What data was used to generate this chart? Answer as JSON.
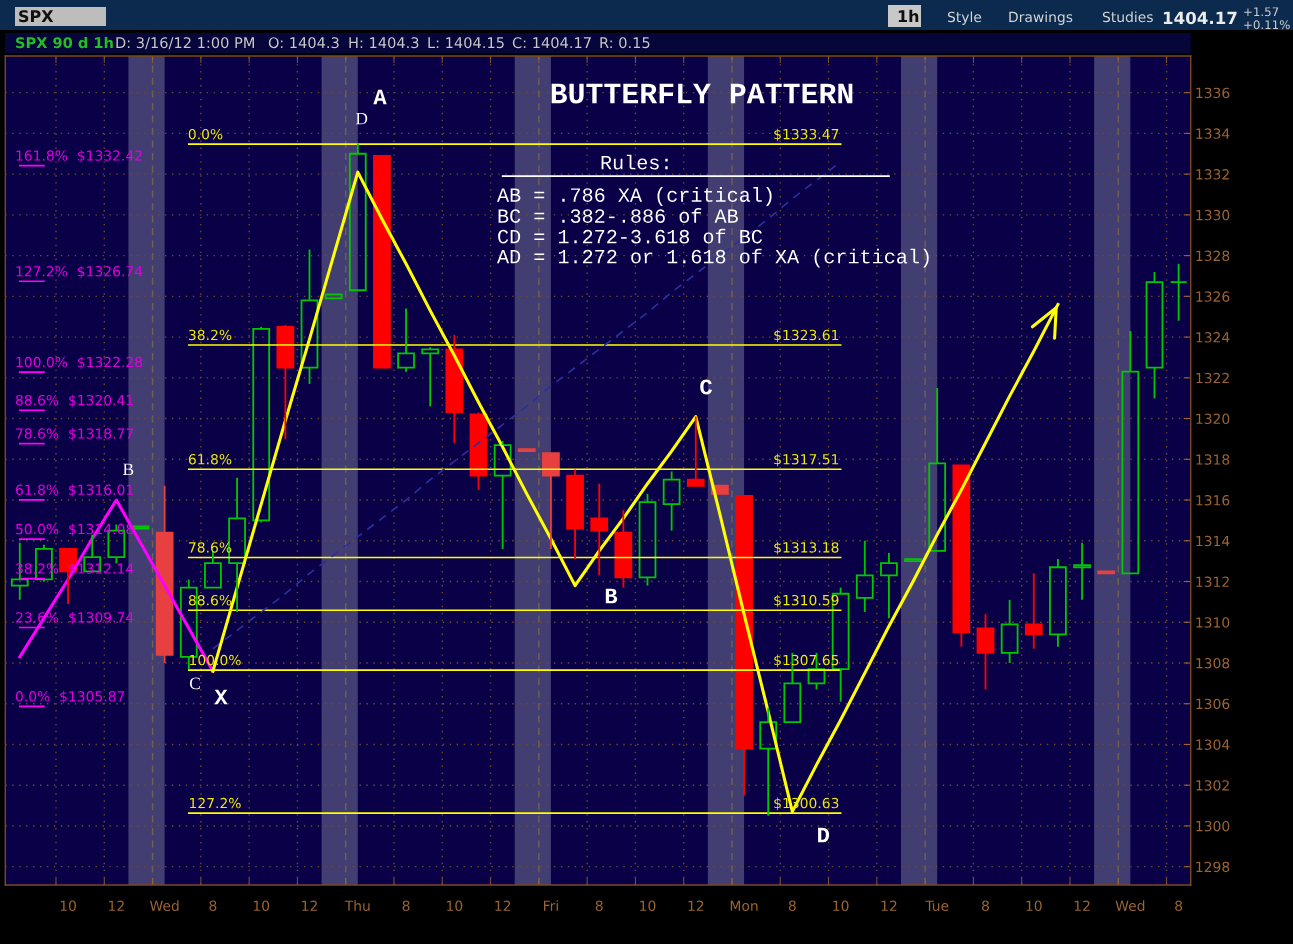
{
  "chart_data": {
    "type": "candlestick",
    "title": "BUTTERFLY PATTERN",
    "categories": [
      null,
      null,
      "10",
      null,
      "12",
      null,
      "Wed",
      null,
      "8",
      null,
      "10",
      null,
      "12",
      null,
      "Thu",
      null,
      "8",
      null,
      "10",
      null,
      "12",
      null,
      "Fri",
      null,
      "8",
      null,
      "10",
      null,
      "12",
      null,
      "Mon",
      null,
      "8",
      null,
      "10",
      null,
      "12",
      null,
      "Tue",
      null,
      "8",
      null,
      "10",
      null,
      "12",
      null,
      "Wed",
      null,
      "8"
    ],
    "ohlc": [
      [
        1311.8,
        1313.9,
        1311.1,
        1312.1
      ],
      [
        1312.1,
        1313.8,
        1312.0,
        1313.6
      ],
      [
        1313.6,
        1313.6,
        1310.9,
        1312.5
      ],
      [
        1312.5,
        1314.3,
        1312.5,
        1313.2
      ],
      [
        1313.2,
        1314.8,
        1312.9,
        1314.5
      ],
      [
        1314.6,
        1314.7,
        1314.6,
        1314.7
      ],
      [
        1314.4,
        1316.7,
        1308.0,
        1308.4
      ],
      [
        1308.3,
        1312.1,
        1307.7,
        1311.7
      ],
      [
        1311.7,
        1313.5,
        1311.7,
        1312.9
      ],
      [
        1312.9,
        1317.1,
        1310.5,
        1315.1
      ],
      [
        1315.0,
        1324.5,
        1314.9,
        1324.4
      ],
      [
        1324.5,
        1324.6,
        1319.0,
        1322.5
      ],
      [
        1322.5,
        1328.3,
        1321.7,
        1325.8
      ],
      [
        1325.9,
        1326.1,
        1325.9,
        1326.1
      ],
      [
        1326.3,
        1333.5,
        1326.3,
        1333.0
      ],
      [
        1332.9,
        1332.9,
        1322.5,
        1322.5
      ],
      [
        1322.5,
        1325.4,
        1322.3,
        1323.2
      ],
      [
        1323.2,
        1323.5,
        1320.6,
        1323.4
      ],
      [
        1323.4,
        1324.1,
        1318.8,
        1320.3
      ],
      [
        1320.2,
        1320.3,
        1316.5,
        1317.2
      ],
      [
        1317.2,
        1318.9,
        1313.6,
        1318.7
      ],
      [
        1318.5,
        1318.5,
        1318.4,
        1318.4
      ],
      [
        1318.3,
        1318.3,
        1313.6,
        1317.2
      ],
      [
        1317.2,
        1317.5,
        1313.1,
        1314.6
      ],
      [
        1315.1,
        1316.8,
        1312.3,
        1314.5
      ],
      [
        1314.4,
        1315.5,
        1311.7,
        1312.2
      ],
      [
        1312.2,
        1316.3,
        1311.8,
        1315.9
      ],
      [
        1315.8,
        1317.4,
        1314.5,
        1317.0
      ],
      [
        1317.0,
        1320.1,
        1316.7,
        1316.7
      ],
      [
        1316.7,
        1316.7,
        1316.3,
        1316.3
      ],
      [
        1316.2,
        1316.2,
        1301.5,
        1303.8
      ],
      [
        1303.8,
        1305.8,
        1300.5,
        1305.1
      ],
      [
        1305.1,
        1308.5,
        1305.1,
        1307.0
      ],
      [
        1307.0,
        1308.5,
        1306.7,
        1307.7
      ],
      [
        1307.7,
        1311.7,
        1306.1,
        1311.4
      ],
      [
        1311.2,
        1314.0,
        1310.5,
        1312.3
      ],
      [
        1312.3,
        1313.4,
        1310.2,
        1312.9
      ],
      [
        1313.0,
        1313.1,
        1313.0,
        1313.1
      ],
      [
        1313.5,
        1321.5,
        1313.5,
        1317.8
      ],
      [
        1317.7,
        1317.7,
        1308.8,
        1309.5
      ],
      [
        1309.7,
        1310.4,
        1306.7,
        1308.5
      ],
      [
        1308.5,
        1311.1,
        1308.0,
        1309.9
      ],
      [
        1309.9,
        1312.4,
        1308.7,
        1309.4
      ],
      [
        1309.4,
        1313.1,
        1308.8,
        1312.7
      ],
      [
        1312.7,
        1313.9,
        1311.1,
        1312.8
      ],
      [
        1312.5,
        1312.5,
        1312.4,
        1312.4
      ],
      [
        1312.4,
        1324.3,
        1312.4,
        1322.3
      ],
      [
        1322.5,
        1327.2,
        1321.0,
        1326.7
      ],
      [
        1326.7,
        1327.6,
        1324.8,
        1326.7
      ]
    ],
    "colors": [
      "#00c800",
      "#00c800",
      "#ff0000",
      "#00c800",
      "#00c800",
      "#00c800",
      "#e84040",
      "#00c800",
      "#00c800",
      "#00c800",
      "#00c800",
      "#ff0000",
      "#00c800",
      "#00c800",
      "#00c800",
      "#ff0000",
      "#00c800",
      "#00c800",
      "#ff0000",
      "#ff0000",
      "#00c800",
      "#e84040",
      "#e84040",
      "#ff0000",
      "#ff0000",
      "#ff0000",
      "#00c800",
      "#00c800",
      "#ff0000",
      "#e84040",
      "#ff0000",
      "#00c800",
      "#00c800",
      "#00c800",
      "#00c800",
      "#00c800",
      "#00c800",
      "#00c800",
      "#00c800",
      "#ff0000",
      "#ff0000",
      "#00c800",
      "#ff0000",
      "#00c800",
      "#00c800",
      "#e84040",
      "#00c800",
      "#00c800",
      "#00c800"
    ],
    "series": [
      {
        "type": "line",
        "color": "#ff00ff",
        "values": [
          1308.3,
          1310.2,
          1312.1,
          1314.1,
          1316.0,
          1313.9,
          1311.8,
          1309.7,
          1307.6,
          null,
          null,
          null,
          null,
          null,
          null,
          null,
          null,
          null,
          null,
          null,
          null,
          null,
          null,
          null,
          null,
          null,
          null,
          null,
          null,
          null,
          null,
          null,
          null,
          null,
          null,
          null,
          null,
          null,
          null,
          null,
          null,
          null,
          null,
          null,
          null,
          null,
          null,
          null,
          null
        ]
      },
      {
        "type": "line",
        "color": "#ff00ff",
        "values": [
          1332.42,
          1332.42,
          null,
          null,
          null,
          null,
          null,
          null,
          null,
          null,
          null,
          null,
          null,
          null,
          null,
          null,
          null,
          null,
          null,
          null,
          null,
          null,
          null,
          null,
          null,
          null,
          null,
          null,
          null,
          null,
          null,
          null,
          null,
          null,
          null,
          null,
          null,
          null,
          null,
          null,
          null,
          null,
          null,
          null,
          null,
          null,
          null,
          null,
          null
        ]
      },
      {
        "type": "line",
        "color": "#ff00ff",
        "values": [
          1326.74,
          1326.74,
          null,
          null,
          null,
          null,
          null,
          null,
          null,
          null,
          null,
          null,
          null,
          null,
          null,
          null,
          null,
          null,
          null,
          null,
          null,
          null,
          null,
          null,
          null,
          null,
          null,
          null,
          null,
          null,
          null,
          null,
          null,
          null,
          null,
          null,
          null,
          null,
          null,
          null,
          null,
          null,
          null,
          null,
          null,
          null,
          null,
          null,
          null
        ]
      },
      {
        "type": "line",
        "color": "#ff00ff",
        "values": [
          1322.28,
          1322.28,
          null,
          null,
          null,
          null,
          null,
          null,
          null,
          null,
          null,
          null,
          null,
          null,
          null,
          null,
          null,
          null,
          null,
          null,
          null,
          null,
          null,
          null,
          null,
          null,
          null,
          null,
          null,
          null,
          null,
          null,
          null,
          null,
          null,
          null,
          null,
          null,
          null,
          null,
          null,
          null,
          null,
          null,
          null,
          null,
          null,
          null,
          null
        ]
      },
      {
        "type": "line",
        "color": "#ff00ff",
        "values": [
          1320.41,
          1320.41,
          null,
          null,
          null,
          null,
          null,
          null,
          null,
          null,
          null,
          null,
          null,
          null,
          null,
          null,
          null,
          null,
          null,
          null,
          null,
          null,
          null,
          null,
          null,
          null,
          null,
          null,
          null,
          null,
          null,
          null,
          null,
          null,
          null,
          null,
          null,
          null,
          null,
          null,
          null,
          null,
          null,
          null,
          null,
          null,
          null,
          null,
          null
        ]
      },
      {
        "type": "line",
        "color": "#ff00ff",
        "values": [
          1318.77,
          1318.77,
          null,
          null,
          null,
          null,
          null,
          null,
          null,
          null,
          null,
          null,
          null,
          null,
          null,
          null,
          null,
          null,
          null,
          null,
          null,
          null,
          null,
          null,
          null,
          null,
          null,
          null,
          null,
          null,
          null,
          null,
          null,
          null,
          null,
          null,
          null,
          null,
          null,
          null,
          null,
          null,
          null,
          null,
          null,
          null,
          null,
          null,
          null
        ]
      },
      {
        "type": "line",
        "color": "#ff00ff",
        "values": [
          1316.01,
          1316.01,
          null,
          null,
          null,
          null,
          null,
          null,
          null,
          null,
          null,
          null,
          null,
          null,
          null,
          null,
          null,
          null,
          null,
          null,
          null,
          null,
          null,
          null,
          null,
          null,
          null,
          null,
          null,
          null,
          null,
          null,
          null,
          null,
          null,
          null,
          null,
          null,
          null,
          null,
          null,
          null,
          null,
          null,
          null,
          null,
          null,
          null,
          null
        ]
      },
      {
        "type": "line",
        "color": "#ff00ff",
        "values": [
          1314.08,
          1314.08,
          null,
          null,
          null,
          null,
          null,
          null,
          null,
          null,
          null,
          null,
          null,
          null,
          null,
          null,
          null,
          null,
          null,
          null,
          null,
          null,
          null,
          null,
          null,
          null,
          null,
          null,
          null,
          null,
          null,
          null,
          null,
          null,
          null,
          null,
          null,
          null,
          null,
          null,
          null,
          null,
          null,
          null,
          null,
          null,
          null,
          null,
          null
        ]
      },
      {
        "type": "line",
        "color": "#ff00ff",
        "values": [
          1312.14,
          1312.14,
          null,
          null,
          null,
          null,
          null,
          null,
          null,
          null,
          null,
          null,
          null,
          null,
          null,
          null,
          null,
          null,
          null,
          null,
          null,
          null,
          null,
          null,
          null,
          null,
          null,
          null,
          null,
          null,
          null,
          null,
          null,
          null,
          null,
          null,
          null,
          null,
          null,
          null,
          null,
          null,
          null,
          null,
          null,
          null,
          null,
          null,
          null
        ]
      },
      {
        "type": "line",
        "color": "#ff00ff",
        "values": [
          1309.74,
          1309.74,
          null,
          null,
          null,
          null,
          null,
          null,
          null,
          null,
          null,
          null,
          null,
          null,
          null,
          null,
          null,
          null,
          null,
          null,
          null,
          null,
          null,
          null,
          null,
          null,
          null,
          null,
          null,
          null,
          null,
          null,
          null,
          null,
          null,
          null,
          null,
          null,
          null,
          null,
          null,
          null,
          null,
          null,
          null,
          null,
          null,
          null,
          null
        ]
      },
      {
        "type": "line",
        "color": "#ff00ff",
        "values": [
          1305.87,
          1305.87,
          null,
          null,
          null,
          null,
          null,
          null,
          null,
          null,
          null,
          null,
          null,
          null,
          null,
          null,
          null,
          null,
          null,
          null,
          null,
          null,
          null,
          null,
          null,
          null,
          null,
          null,
          null,
          null,
          null,
          null,
          null,
          null,
          null,
          null,
          null,
          null,
          null,
          null,
          null,
          null,
          null,
          null,
          null,
          null,
          null,
          null,
          null
        ]
      },
      {
        "type": "line",
        "color": "#ffff00",
        "values": [
          null,
          null,
          null,
          null,
          null,
          null,
          null,
          1333.47,
          1333.47,
          1333.47,
          1333.47,
          1333.47,
          1333.47,
          1333.47,
          1333.47,
          1333.47,
          1333.47,
          1333.47,
          1333.47,
          1333.47,
          1333.47,
          1333.47,
          1333.47,
          1333.47,
          1333.47,
          1333.47,
          1333.47,
          1333.47,
          1333.47,
          1333.47,
          1333.47,
          1333.47,
          1333.47,
          1333.47,
          1333.47,
          null,
          null,
          null,
          null,
          null,
          null,
          null,
          null,
          null,
          null,
          null,
          null,
          null,
          null
        ]
      },
      {
        "type": "line",
        "color": "#ffff00",
        "values": [
          null,
          null,
          null,
          null,
          null,
          null,
          null,
          1323.61,
          1323.61,
          1323.61,
          1323.61,
          1323.61,
          1323.61,
          1323.61,
          1323.61,
          1323.61,
          1323.61,
          1323.61,
          1323.61,
          1323.61,
          1323.61,
          1323.61,
          1323.61,
          1323.61,
          1323.61,
          1323.61,
          1323.61,
          1323.61,
          1323.61,
          1323.61,
          1323.61,
          1323.61,
          1323.61,
          1323.61,
          1323.61,
          null,
          null,
          null,
          null,
          null,
          null,
          null,
          null,
          null,
          null,
          null,
          null,
          null,
          null
        ]
      },
      {
        "type": "line",
        "color": "#ffff00",
        "values": [
          null,
          null,
          null,
          null,
          null,
          null,
          null,
          1317.51,
          1317.51,
          1317.51,
          1317.51,
          1317.51,
          1317.51,
          1317.51,
          1317.51,
          1317.51,
          1317.51,
          1317.51,
          1317.51,
          1317.51,
          1317.51,
          1317.51,
          1317.51,
          1317.51,
          1317.51,
          1317.51,
          1317.51,
          1317.51,
          1317.51,
          1317.51,
          1317.51,
          1317.51,
          1317.51,
          1317.51,
          1317.51,
          null,
          null,
          null,
          null,
          null,
          null,
          null,
          null,
          null,
          null,
          null,
          null,
          null,
          null
        ]
      },
      {
        "type": "line",
        "color": "#ffff00",
        "values": [
          null,
          null,
          null,
          null,
          null,
          null,
          null,
          1313.18,
          1313.18,
          1313.18,
          1313.18,
          1313.18,
          1313.18,
          1313.18,
          1313.18,
          1313.18,
          1313.18,
          1313.18,
          1313.18,
          1313.18,
          1313.18,
          1313.18,
          1313.18,
          1313.18,
          1313.18,
          1313.18,
          1313.18,
          1313.18,
          1313.18,
          1313.18,
          1313.18,
          1313.18,
          1313.18,
          1313.18,
          1313.18,
          null,
          null,
          null,
          null,
          null,
          null,
          null,
          null,
          null,
          null,
          null,
          null,
          null,
          null
        ]
      },
      {
        "type": "line",
        "color": "#ffff00",
        "values": [
          null,
          null,
          null,
          null,
          null,
          null,
          null,
          1310.59,
          1310.59,
          1310.59,
          1310.59,
          1310.59,
          1310.59,
          1310.59,
          1310.59,
          1310.59,
          1310.59,
          1310.59,
          1310.59,
          1310.59,
          1310.59,
          1310.59,
          1310.59,
          1310.59,
          1310.59,
          1310.59,
          1310.59,
          1310.59,
          1310.59,
          1310.59,
          1310.59,
          1310.59,
          1310.59,
          1310.59,
          1310.59,
          null,
          null,
          null,
          null,
          null,
          null,
          null,
          null,
          null,
          null,
          null,
          null,
          null,
          null
        ]
      },
      {
        "type": "line",
        "color": "#ffff00",
        "values": [
          null,
          null,
          null,
          null,
          null,
          null,
          null,
          1307.65,
          1307.65,
          1307.65,
          1307.65,
          1307.65,
          1307.65,
          1307.65,
          1307.65,
          1307.65,
          1307.65,
          1307.65,
          1307.65,
          1307.65,
          1307.65,
          1307.65,
          1307.65,
          1307.65,
          1307.65,
          1307.65,
          1307.65,
          1307.65,
          1307.65,
          1307.65,
          1307.65,
          1307.65,
          1307.65,
          1307.65,
          1307.65,
          null,
          null,
          null,
          null,
          null,
          null,
          null,
          null,
          null,
          null,
          null,
          null,
          null,
          null
        ]
      },
      {
        "type": "line",
        "color": "#ffff00",
        "values": [
          null,
          null,
          null,
          null,
          null,
          null,
          null,
          1300.63,
          1300.63,
          1300.63,
          1300.63,
          1300.63,
          1300.63,
          1300.63,
          1300.63,
          1300.63,
          1300.63,
          1300.63,
          1300.63,
          1300.63,
          1300.63,
          1300.63,
          1300.63,
          1300.63,
          1300.63,
          1300.63,
          1300.63,
          1300.63,
          1300.63,
          1300.63,
          1300.63,
          1300.63,
          1300.63,
          1300.63,
          1300.63,
          null,
          null,
          null,
          null,
          null,
          null,
          null,
          null,
          null,
          null,
          null,
          null,
          null,
          null
        ]
      },
      {
        "type": "line",
        "color": "#2e2e9a",
        "line_style": "dashed",
        "values": [
          null,
          null,
          null,
          null,
          null,
          null,
          null,
          null,
          1308.7,
          1309.6,
          1310.5,
          1311.4,
          1312.4,
          1313.3,
          1314.2,
          1315.1,
          1316.0,
          1317.0,
          1317.9,
          1318.8,
          1319.7,
          1320.6,
          1321.6,
          1322.5,
          1323.4,
          1324.3,
          1325.2,
          1326.2,
          1327.1,
          1328.0,
          1328.9,
          1329.8,
          1330.8,
          1331.7,
          1332.6,
          null,
          null,
          null,
          null,
          null,
          null,
          null,
          null,
          null,
          null,
          null,
          null,
          null,
          null
        ]
      },
      {
        "type": "line",
        "color": "#ffffff",
        "values": [
          null,
          null,
          null,
          null,
          null,
          null,
          null,
          null,
          null,
          null,
          null,
          null,
          null,
          null,
          null,
          null,
          null,
          null,
          null,
          null,
          1331.9,
          1331.9,
          1331.9,
          1331.9,
          1331.9,
          1331.9,
          1331.9,
          1331.9,
          1331.9,
          1331.9,
          1331.9,
          1331.9,
          1331.9,
          1331.9,
          1331.9,
          1331.9,
          1331.9,
          null,
          null,
          null,
          null,
          null,
          null,
          null,
          null,
          null,
          null,
          null,
          null
        ]
      },
      {
        "type": "line",
        "color": "#ffff00",
        "values": [
          null,
          null,
          null,
          null,
          null,
          null,
          null,
          null,
          1307.6,
          1311.7,
          1315.8,
          1319.9,
          1323.9,
          1328.0,
          1332.1,
          1329.8,
          1327.6,
          1325.3,
          1323.1,
          1320.8,
          1318.6,
          1316.3,
          1314.1,
          1311.8,
          1313.5,
          1315.1,
          1316.8,
          1318.4,
          1320.1,
          1315.3,
          1310.4,
          1305.6,
          1300.7,
          1303.0,
          1305.2,
          1307.5,
          1309.8,
          1312.0,
          1314.3,
          1316.5,
          1318.8,
          1321.1,
          1323.3,
          1325.6,
          null,
          null,
          null,
          null,
          null
        ]
      }
    ],
    "ylim": [
      1297.1,
      1337.8
    ],
    "yticks": [
      1298,
      1300,
      1302,
      1304,
      1306,
      1308,
      1310,
      1312,
      1314,
      1316,
      1318,
      1320,
      1322,
      1324,
      1326,
      1328,
      1330,
      1332,
      1334,
      1336
    ],
    "grid": true,
    "annotations": [
      "SPX",
      "1h",
      "Style",
      "Drawings",
      "Studies",
      "1404.17",
      "+1.57",
      "+0.11%",
      "SPX 90 d 1h",
      "D: 3/16/12 1:00 PM",
      "O: 1404.3",
      "H: 1404.3",
      "L: 1404.15",
      "C: 1404.17",
      "R: 0.15",
      "Rules:",
      "AB = .786 XA (critical)",
      "BC = .382-.886 of AB",
      "CD = 1.272-3.618 of BC",
      "AD = 1.272 or 1.618 of XA (critical)",
      "161.8%  $1332.42",
      "127.2%  $1326.74",
      "100.0%  $1322.28",
      "88.6%  $1320.41",
      "78.6%  $1318.77",
      "61.8%  $1316.01",
      "50.0%  $1314.08",
      "38.2%  $1312.14",
      "23.6%  $1309.74",
      "0.0%  $1305.87",
      "A",
      "D",
      "B",
      "C",
      "X",
      "B",
      "C",
      "D",
      {
        "text": "0.0%",
        "y": 1333.47
      },
      {
        "text": "38.2%",
        "y": 1323.61
      },
      {
        "text": "61.8%",
        "y": 1317.51
      },
      {
        "text": "78.6%",
        "y": 1313.18
      },
      {
        "text": "88.6%",
        "y": 1310.59
      },
      {
        "text": "100.0%",
        "y": 1307.65
      },
      {
        "text": "127.2%",
        "y": 1300.63
      },
      {
        "text": "$1333.47",
        "y": 1333.47
      },
      {
        "text": "$1323.61",
        "y": 1323.61
      },
      {
        "text": "$1317.51",
        "y": 1317.51
      },
      {
        "text": "$1313.18",
        "y": 1313.18
      },
      {
        "text": "$1310.59",
        "y": 1310.59
      },
      {
        "text": "$1307.65",
        "y": 1307.65
      },
      {
        "text": "$1300.63",
        "y": 1300.63
      }
    ]
  }
}
